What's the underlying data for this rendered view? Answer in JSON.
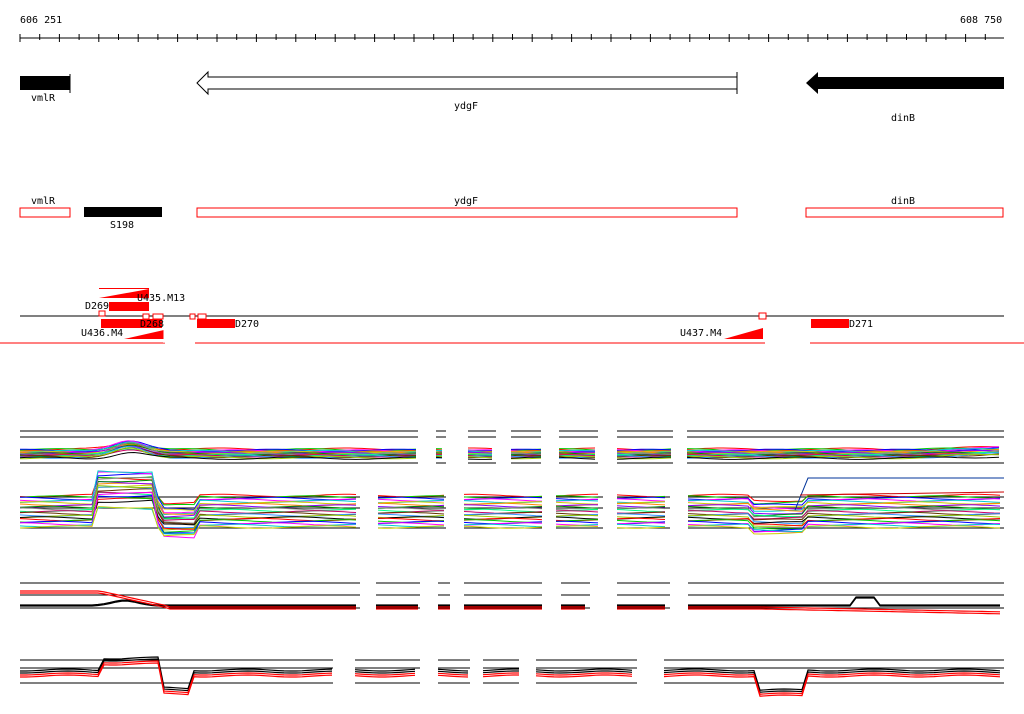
{
  "ruler": {
    "start_label": "606 251",
    "end_label": "608 750"
  },
  "genes": [
    {
      "name": "vmlR",
      "direction": "forward"
    },
    {
      "name": "ydgF",
      "direction": "reverse"
    },
    {
      "name": "dinB",
      "direction": "reverse"
    }
  ],
  "gene_boxes": [
    {
      "name": "vmlR"
    },
    {
      "name": "ydgF"
    },
    {
      "name": "dinB"
    }
  ],
  "feature": {
    "name": "S198"
  },
  "transcripts": {
    "D269": "D269",
    "U435": "U435.M13",
    "U436": "U436.M4",
    "D268": "D268",
    "D270": "D270",
    "U437": "U437.M4",
    "D271": "D271"
  },
  "colors": {
    "highlight": "#ff0000",
    "gene_fill": "#000000",
    "outline": "#000000"
  },
  "track_palette": [
    "#ff0000",
    "#00cc00",
    "#0000ff",
    "#ff00ff",
    "#00cccc",
    "#cccc00",
    "#ff8800",
    "#8800ff",
    "#008800",
    "#888888",
    "#00ff88",
    "#cc0066",
    "#663300",
    "#3399ff",
    "#99cc00",
    "#000000"
  ]
}
